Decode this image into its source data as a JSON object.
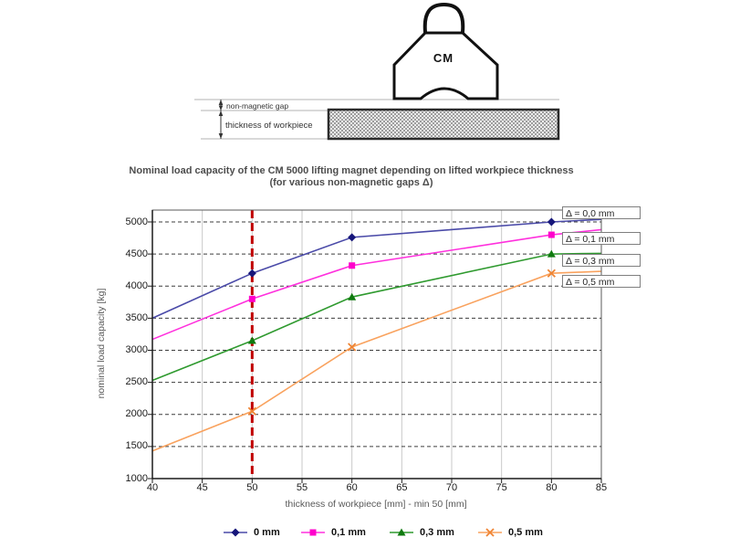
{
  "diagram": {
    "magnet_label": "CM",
    "gap_label": "non-magnetic gap",
    "workpiece_label": "thickness of workpiece"
  },
  "chart": {
    "title_line1": "Nominal load capacity of the CM 5000 lifting magnet depending on lifted workpiece thickness",
    "title_line2": "(for various non-magnetic gaps Δ)"
  },
  "chart_data": {
    "type": "line",
    "title": "Nominal load capacity of the CM 5000 lifting magnet depending on lifted workpiece thickness (for various non-magnetic gaps Δ)",
    "xlabel": "thickness of workpiece [mm] - min 50 [mm]",
    "ylabel": "nominal load capacity [kg]",
    "xlim": [
      40,
      85
    ],
    "ylim": [
      1000,
      5000
    ],
    "x_ticks": [
      40,
      45,
      50,
      55,
      60,
      65,
      70,
      75,
      80,
      85
    ],
    "y_ticks": [
      1000,
      1500,
      2000,
      2500,
      3000,
      3500,
      4000,
      4500,
      5000
    ],
    "grid": true,
    "legend_position": "bottom",
    "x": [
      40,
      50,
      60,
      80,
      85
    ],
    "marker_x": [
      50,
      60,
      80
    ],
    "series": [
      {
        "name": "0 mm",
        "annotation": "Δ = 0,0 mm",
        "marker": "diamond",
        "line_color": "#4a4aa8",
        "marker_color": "#16167a",
        "values": [
          3500,
          4200,
          4760,
          5000,
          5040
        ]
      },
      {
        "name": "0,1 mm",
        "annotation": "Δ = 0,1 mm",
        "marker": "square",
        "line_color": "#ff30dd",
        "marker_color": "#ff00cc",
        "values": [
          3170,
          3800,
          4320,
          4800,
          4880
        ]
      },
      {
        "name": "0,3 mm",
        "annotation": "Δ = 0,3 mm",
        "marker": "triangle",
        "line_color": "#2f9a2f",
        "marker_color": "#0f7a0f",
        "values": [
          2530,
          3150,
          3830,
          4500,
          4510
        ]
      },
      {
        "name": "0,5 mm",
        "annotation": "Δ = 0,5 mm",
        "marker": "x",
        "line_color": "#f9a25e",
        "marker_color": "#ef8433",
        "values": [
          1430,
          2050,
          3050,
          4200,
          4230
        ]
      }
    ],
    "reference_line": {
      "x": 50,
      "color": "#c00000",
      "style": "dashed"
    }
  }
}
